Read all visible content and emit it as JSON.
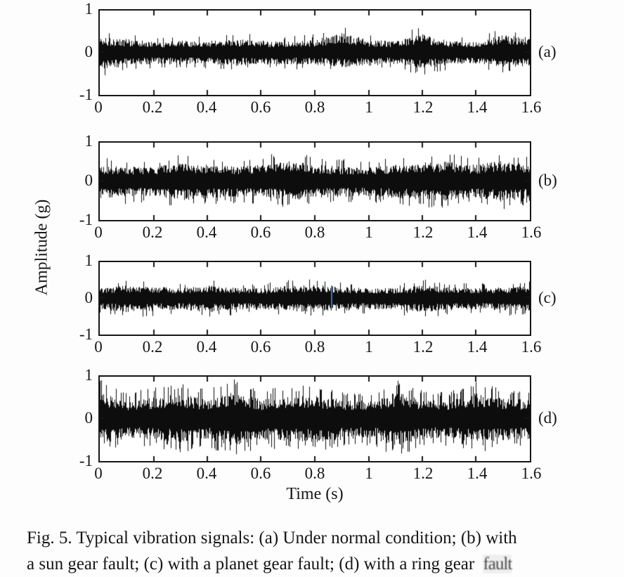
{
  "figure": {
    "ylabel": "Amplitude (g)",
    "xlabel": "Time (s)",
    "ink_color": "#0d0d0d",
    "background_color": "#fdfdfd",
    "xticks": [
      "0",
      "0.2",
      "0.4",
      "0.6",
      "0.8",
      "1",
      "1.2",
      "1.4",
      "1.6"
    ],
    "yticks": [
      "1",
      "0",
      "-1"
    ],
    "panels": [
      {
        "side_label": "(a)",
        "condition": "Under normal condition"
      },
      {
        "side_label": "(b)",
        "condition": "with a sun gear fault"
      },
      {
        "side_label": "(c)",
        "condition": "with a planet gear fault"
      },
      {
        "side_label": "(d)",
        "condition": "with a ring gear fault"
      }
    ]
  },
  "caption": {
    "line1": "Fig. 5. Typical vibration signals: (a) Under normal condition; (b) with",
    "line2_prefix": "a sun gear fault; (c) with a planet gear fault; (d) with a ring gear",
    "line2_last_word": "fault"
  },
  "chart_data": [
    {
      "type": "line",
      "panel": "(a)",
      "title": "Under normal condition",
      "xlabel": "Time (s)",
      "ylabel": "Amplitude (g)",
      "xlim": [
        0,
        1.6
      ],
      "ylim": [
        -1,
        1
      ],
      "xticks": [
        0,
        0.2,
        0.4,
        0.6,
        0.8,
        1,
        1.2,
        1.4,
        1.6
      ],
      "yticks": [
        1,
        0,
        -1
      ],
      "signal": "dense broadband vibration noise",
      "envelope_x_step": 0.1,
      "envelope_pos": [
        0.5,
        0.45,
        0.35,
        0.4,
        0.38,
        0.45,
        0.4,
        0.36,
        0.42,
        0.68,
        0.42,
        0.38,
        0.62,
        0.38,
        0.34,
        0.6,
        0.5
      ],
      "envelope_neg": [
        0.6,
        0.45,
        0.4,
        0.42,
        0.4,
        0.45,
        0.42,
        0.4,
        0.42,
        0.5,
        0.45,
        0.4,
        0.55,
        0.42,
        0.38,
        0.5,
        0.45
      ]
    },
    {
      "type": "line",
      "panel": "(b)",
      "title": "with a sun gear fault",
      "xlabel": "Time (s)",
      "ylabel": "Amplitude (g)",
      "xlim": [
        0,
        1.6
      ],
      "ylim": [
        -1,
        1
      ],
      "xticks": [
        0,
        0.2,
        0.4,
        0.6,
        0.8,
        1,
        1.2,
        1.4,
        1.6
      ],
      "yticks": [
        1,
        0,
        -1
      ],
      "signal": "amplitude-modulated noise with periodic bursts",
      "envelope_x_step": 0.1,
      "envelope_pos": [
        0.6,
        0.55,
        0.5,
        0.72,
        0.6,
        0.55,
        0.62,
        0.8,
        0.6,
        0.55,
        0.52,
        0.6,
        0.68,
        0.75,
        0.6,
        0.78,
        0.62
      ],
      "envelope_neg": [
        0.65,
        0.6,
        0.55,
        0.7,
        0.62,
        0.58,
        0.6,
        0.7,
        0.62,
        0.58,
        0.55,
        0.62,
        0.7,
        0.72,
        0.62,
        0.75,
        0.6
      ]
    },
    {
      "type": "line",
      "panel": "(c)",
      "title": "with a planet gear fault",
      "xlabel": "Time (s)",
      "ylabel": "Amplitude (g)",
      "xlim": [
        0,
        1.6
      ],
      "ylim": [
        -1,
        1
      ],
      "xticks": [
        0,
        0.2,
        0.4,
        0.6,
        0.8,
        1,
        1.2,
        1.4,
        1.6
      ],
      "yticks": [
        1,
        0,
        -1
      ],
      "signal": "compact noise band with mild bursts",
      "envelope_x_step": 0.1,
      "envelope_pos": [
        0.38,
        0.5,
        0.45,
        0.38,
        0.5,
        0.42,
        0.38,
        0.48,
        0.52,
        0.45,
        0.4,
        0.38,
        0.5,
        0.42,
        0.38,
        0.42,
        0.48
      ],
      "envelope_neg": [
        0.45,
        0.55,
        0.5,
        0.45,
        0.55,
        0.48,
        0.45,
        0.5,
        0.55,
        0.5,
        0.45,
        0.45,
        0.55,
        0.48,
        0.45,
        0.48,
        0.52
      ],
      "artifact": {
        "t": 0.86,
        "span": [
          -0.3,
          0.34
        ],
        "color": "#4a6fae"
      }
    },
    {
      "type": "line",
      "panel": "(d)",
      "title": "with a ring gear fault",
      "xlabel": "Time (s)",
      "ylabel": "Amplitude (g)",
      "xlim": [
        0,
        1.6
      ],
      "ylim": [
        -1,
        1
      ],
      "xticks": [
        0,
        0.2,
        0.4,
        0.6,
        0.8,
        1,
        1.2,
        1.4,
        1.6
      ],
      "yticks": [
        1,
        0,
        -1
      ],
      "signal": "spiky impulsive noise with tall transients",
      "envelope_x_step": 0.1,
      "envelope_pos": [
        0.9,
        0.6,
        0.72,
        0.85,
        0.65,
        0.95,
        0.65,
        0.75,
        0.8,
        0.65,
        0.6,
        0.92,
        0.65,
        0.6,
        0.88,
        0.7,
        0.65
      ],
      "envelope_neg": [
        0.85,
        0.65,
        0.7,
        0.8,
        0.7,
        0.9,
        0.7,
        0.75,
        0.78,
        0.7,
        0.65,
        0.88,
        0.7,
        0.65,
        0.8,
        0.72,
        0.68
      ]
    }
  ]
}
